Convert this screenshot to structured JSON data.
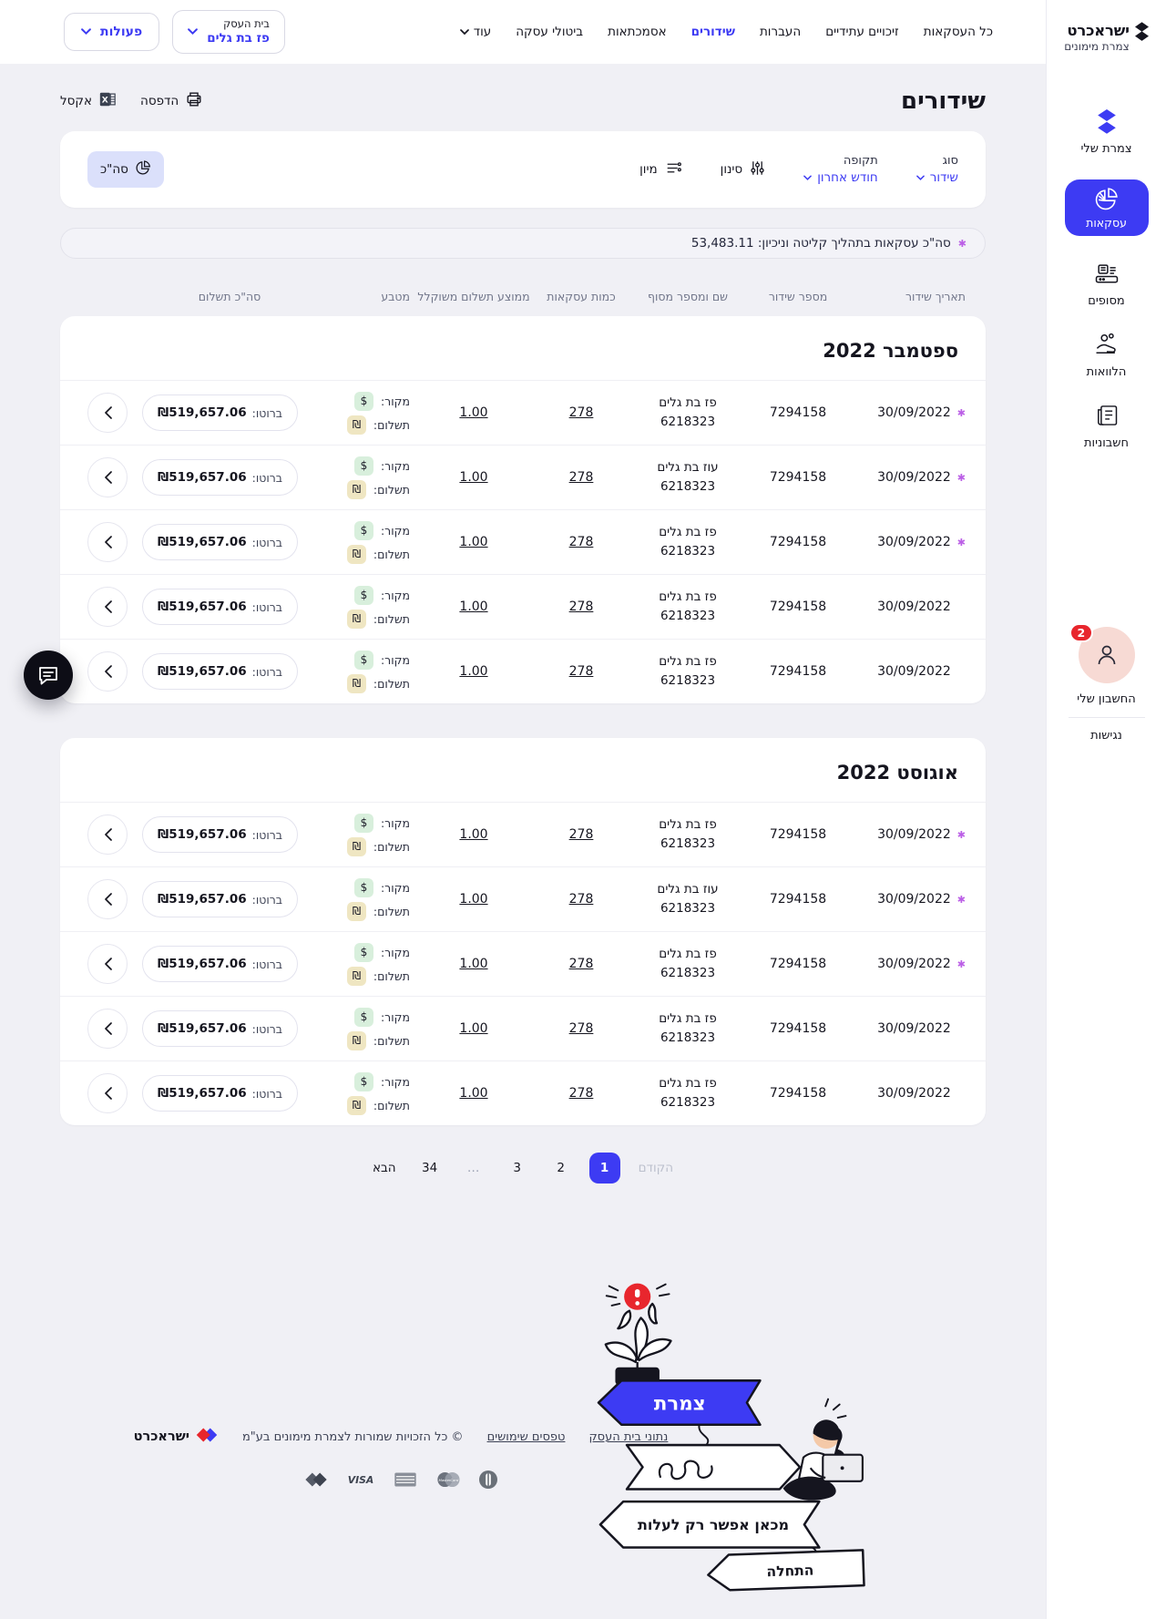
{
  "brand": {
    "name": "ישראכרט",
    "subtitle": "צמרת מימונים"
  },
  "topnav": {
    "items": [
      {
        "label": "כל העסקאות",
        "active": false
      },
      {
        "label": "זיכויים עתידיים",
        "active": false
      },
      {
        "label": "העברות",
        "active": false
      },
      {
        "label": "שידורים",
        "active": true
      },
      {
        "label": "אסמכתאות",
        "active": false
      },
      {
        "label": "ביטולי עסקה",
        "active": false
      },
      {
        "label": "עוד",
        "active": false
      }
    ],
    "business_button": {
      "label": "בית העסק",
      "value": "פז בת גלים"
    },
    "actions_button": {
      "label": "פעולות"
    }
  },
  "sidebar": {
    "items": [
      {
        "label": "צמרת שלי"
      },
      {
        "label": "עסקאות"
      },
      {
        "label": "מסופים"
      },
      {
        "label": "הלוואות"
      },
      {
        "label": "חשבוניות"
      }
    ],
    "account_label": "החשבון שלי",
    "account_badge": "2",
    "accessibility_label": "נגישות"
  },
  "page": {
    "title": "שידורים",
    "print_label": "הדפסה",
    "excel_label": "אקסל"
  },
  "filters": {
    "type_label": "סוג",
    "type_value": "שידור",
    "period_label": "תקופה",
    "period_value": "חודש אחרון",
    "filter_label": "סינון",
    "sort_label": "מיון",
    "total_label": "סה\"כ"
  },
  "summary": {
    "text": "סה\"כ עסקאות בתהליך קליטה וניכיון: 53,483.11"
  },
  "table": {
    "headers": [
      "תאריך שידור",
      "מספר שידור",
      "שם ומספר מסוף",
      "כמות עסקאות",
      "ממוצע תשלום משוקלל",
      "מטבע",
      "סה\"כ תשלום"
    ],
    "source_label": "מקור:",
    "payment_label": "תשלום:",
    "gross_label": "ברוטו:",
    "sections": [
      {
        "month": "ספטמבר 2022",
        "rows": [
          {
            "flagged": true,
            "date": "30/09/2022",
            "number": "7294158",
            "terminal_name": "פז בת גלים",
            "terminal_number": "6218323",
            "count": "278",
            "average": "1.00",
            "source_currency": "$",
            "payment_currency": "₪",
            "gross": "₪519,657.06"
          },
          {
            "flagged": true,
            "date": "30/09/2022",
            "number": "7294158",
            "terminal_name": "עוז בת גלים",
            "terminal_number": "6218323",
            "count": "278",
            "average": "1.00",
            "source_currency": "$",
            "payment_currency": "₪",
            "gross": "₪519,657.06"
          },
          {
            "flagged": true,
            "date": "30/09/2022",
            "number": "7294158",
            "terminal_name": "פז בת גלים",
            "terminal_number": "6218323",
            "count": "278",
            "average": "1.00",
            "source_currency": "$",
            "payment_currency": "₪",
            "gross": "₪519,657.06"
          },
          {
            "flagged": false,
            "date": "30/09/2022",
            "number": "7294158",
            "terminal_name": "פז בת גלים",
            "terminal_number": "6218323",
            "count": "278",
            "average": "1.00",
            "source_currency": "$",
            "payment_currency": "₪",
            "gross": "₪519,657.06"
          },
          {
            "flagged": false,
            "date": "30/09/2022",
            "number": "7294158",
            "terminal_name": "פז בת גלים",
            "terminal_number": "6218323",
            "count": "278",
            "average": "1.00",
            "source_currency": "$",
            "payment_currency": "₪",
            "gross": "₪519,657.06"
          }
        ]
      },
      {
        "month": "אוגוסט 2022",
        "rows": [
          {
            "flagged": true,
            "date": "30/09/2022",
            "number": "7294158",
            "terminal_name": "פז בת גלים",
            "terminal_number": "6218323",
            "count": "278",
            "average": "1.00",
            "source_currency": "$",
            "payment_currency": "₪",
            "gross": "₪519,657.06"
          },
          {
            "flagged": true,
            "date": "30/09/2022",
            "number": "7294158",
            "terminal_name": "עוז בת גלים",
            "terminal_number": "6218323",
            "count": "278",
            "average": "1.00",
            "source_currency": "$",
            "payment_currency": "₪",
            "gross": "₪519,657.06"
          },
          {
            "flagged": true,
            "date": "30/09/2022",
            "number": "7294158",
            "terminal_name": "פז בת גלים",
            "terminal_number": "6218323",
            "count": "278",
            "average": "1.00",
            "source_currency": "$",
            "payment_currency": "₪",
            "gross": "₪519,657.06"
          },
          {
            "flagged": false,
            "date": "30/09/2022",
            "number": "7294158",
            "terminal_name": "פז בת גלים",
            "terminal_number": "6218323",
            "count": "278",
            "average": "1.00",
            "source_currency": "$",
            "payment_currency": "₪",
            "gross": "₪519,657.06"
          },
          {
            "flagged": false,
            "date": "30/09/2022",
            "number": "7294158",
            "terminal_name": "פז בת גלים",
            "terminal_number": "6218323",
            "count": "278",
            "average": "1.00",
            "source_currency": "$",
            "payment_currency": "₪",
            "gross": "₪519,657.06"
          }
        ]
      }
    ]
  },
  "pagination": {
    "previous": "הקודם",
    "pages": [
      "1",
      "2",
      "3",
      "…",
      "34"
    ],
    "active_page": "1",
    "next": "הבא"
  },
  "illustration": {
    "sign_top": "צמרת",
    "sign_middle": "מכאן אפשר רק לעלות",
    "sign_bottom": "התחלה"
  },
  "footer": {
    "links": [
      "נתוני בית העסק",
      "טפסים שימושים"
    ],
    "copyright": "© כל הזכויות שמורות לצמרת מימונים בע\"מ",
    "brand": "ישראכרט"
  },
  "colors": {
    "accent": "#3d3bf3",
    "flag": "#bb5fe6",
    "badge_red": "#e8262d",
    "source_badge_bg": "#d8efdc",
    "payment_badge_bg": "#efe6c2",
    "avatar_bg": "#f7dad4",
    "page_bg": "#f0f0f5"
  }
}
